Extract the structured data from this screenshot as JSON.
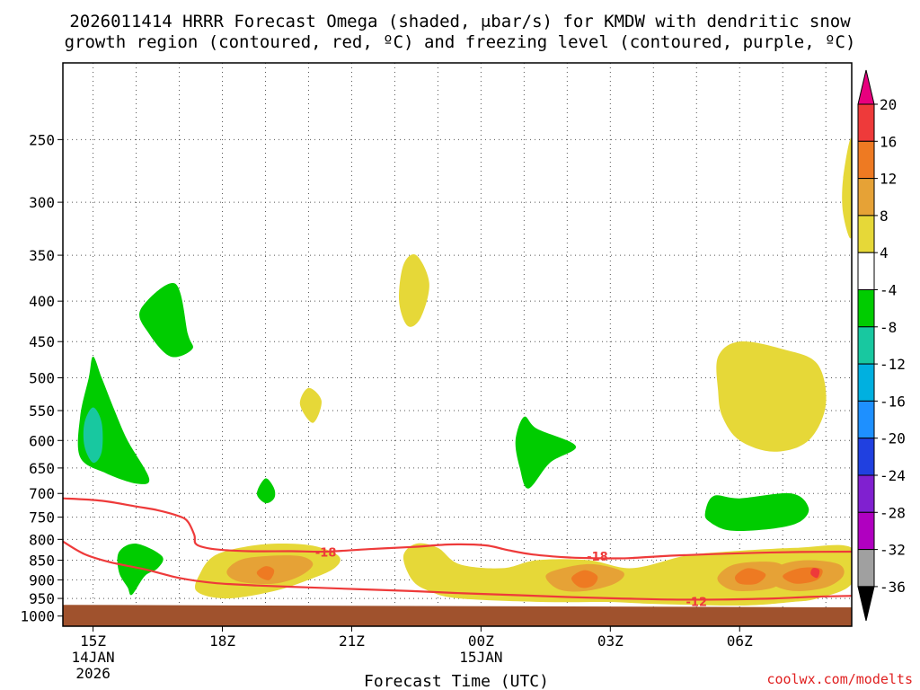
{
  "chart_data": {
    "type": "contour-timeheight",
    "title_line1": "2026011414 HRRR Forecast Omega (shaded, μbar/s) for KMDW with dendritic snow",
    "title_line2": "growth region (contoured, red, ºC) and freezing level (contoured, purple, ºC)",
    "xlabel": "Forecast Time (UTC)",
    "credit": "coolwx.com/modelts",
    "x_range_hours": [
      14.3,
      32.6
    ],
    "y_range_hpa": [
      1030,
      200
    ],
    "y_ticks": [
      250,
      300,
      350,
      400,
      450,
      500,
      550,
      600,
      650,
      700,
      750,
      800,
      850,
      900,
      950,
      1000
    ],
    "x_ticks": [
      {
        "hour": 15,
        "lines": [
          "15Z",
          "14JAN",
          "2026"
        ]
      },
      {
        "hour": 18,
        "lines": [
          "18Z"
        ]
      },
      {
        "hour": 21,
        "lines": [
          "21Z"
        ]
      },
      {
        "hour": 24,
        "lines": [
          "00Z",
          "15JAN"
        ]
      },
      {
        "hour": 27,
        "lines": [
          "03Z"
        ]
      },
      {
        "hour": 30,
        "lines": [
          "06Z"
        ]
      }
    ],
    "colorbar": {
      "levels": [
        "20",
        "16",
        "12",
        "8",
        "4",
        "-4",
        "-8",
        "-12",
        "-16",
        "-20",
        "-24",
        "-28",
        "-32",
        "-36"
      ],
      "colors": [
        "#e8007e",
        "#ee3a3a",
        "#ee7a22",
        "#e6a236",
        "#e6d838",
        "#ffffff",
        "#00cc00",
        "#18c8a0",
        "#00b0e0",
        "#1e90ff",
        "#2040e0",
        "#8020d0",
        "#b000c0",
        "#a0a0a0",
        "#000000"
      ]
    },
    "surface_color": "#a0522d",
    "shaded_regions": [
      {
        "name": "green-upper-left",
        "color": "#00cc00",
        "points": [
          [
            15.0,
            470
          ],
          [
            15.2,
            500
          ],
          [
            15.5,
            550
          ],
          [
            15.8,
            600
          ],
          [
            16.3,
            670
          ],
          [
            16.0,
            680
          ],
          [
            15.3,
            660
          ],
          [
            14.7,
            630
          ],
          [
            14.7,
            560
          ],
          [
            14.9,
            500
          ]
        ]
      },
      {
        "name": "teal-core",
        "color": "#18c8a0",
        "points": [
          [
            15.0,
            545
          ],
          [
            15.2,
            570
          ],
          [
            15.2,
            620
          ],
          [
            15.0,
            640
          ],
          [
            14.8,
            610
          ],
          [
            14.8,
            570
          ]
        ]
      },
      {
        "name": "green-400",
        "color": "#00cc00",
        "points": [
          [
            16.1,
            410
          ],
          [
            16.9,
            380
          ],
          [
            17.2,
            440
          ],
          [
            17.3,
            460
          ],
          [
            16.8,
            470
          ],
          [
            16.3,
            440
          ]
        ]
      },
      {
        "name": "green-700",
        "color": "#00cc00",
        "points": [
          [
            19.0,
            670
          ],
          [
            19.2,
            690
          ],
          [
            19.2,
            710
          ],
          [
            19.0,
            720
          ],
          [
            18.8,
            700
          ]
        ]
      },
      {
        "name": "green-low-left",
        "color": "#00cc00",
        "points": [
          [
            15.6,
            830
          ],
          [
            16.0,
            810
          ],
          [
            16.6,
            840
          ],
          [
            16.5,
            870
          ],
          [
            16.2,
            890
          ],
          [
            15.9,
            940
          ],
          [
            15.8,
            920
          ],
          [
            15.6,
            880
          ]
        ]
      },
      {
        "name": "green-600",
        "color": "#00cc00",
        "points": [
          [
            25.0,
            560
          ],
          [
            25.3,
            580
          ],
          [
            26.2,
            610
          ],
          [
            25.6,
            640
          ],
          [
            25.1,
            690
          ],
          [
            24.9,
            650
          ],
          [
            24.8,
            600
          ]
        ]
      },
      {
        "name": "green-750",
        "color": "#00cc00",
        "points": [
          [
            29.4,
            705
          ],
          [
            30.0,
            710
          ],
          [
            31.2,
            700
          ],
          [
            31.6,
            730
          ],
          [
            31.4,
            760
          ],
          [
            30.8,
            775
          ],
          [
            29.8,
            780
          ],
          [
            29.3,
            760
          ],
          [
            29.2,
            740
          ]
        ]
      },
      {
        "name": "yellow-top-right",
        "color": "#e6d838",
        "points": [
          [
            32.6,
            250
          ],
          [
            32.6,
            330
          ],
          [
            32.4,
            310
          ],
          [
            32.4,
            280
          ]
        ]
      },
      {
        "name": "yellow-380",
        "color": "#e6d838",
        "points": [
          [
            22.2,
            360
          ],
          [
            22.5,
            350
          ],
          [
            22.8,
            380
          ],
          [
            22.6,
            420
          ],
          [
            22.3,
            430
          ],
          [
            22.1,
            400
          ]
        ]
      },
      {
        "name": "yellow-540",
        "color": "#e6d838",
        "points": [
          [
            20.0,
            515
          ],
          [
            20.3,
            535
          ],
          [
            20.1,
            570
          ],
          [
            19.8,
            540
          ]
        ]
      },
      {
        "name": "yellow-500",
        "color": "#e6d838",
        "points": [
          [
            29.5,
            470
          ],
          [
            30.0,
            450
          ],
          [
            31.0,
            460
          ],
          [
            31.8,
            480
          ],
          [
            32.0,
            540
          ],
          [
            31.6,
            600
          ],
          [
            30.8,
            620
          ],
          [
            30.0,
            600
          ],
          [
            29.6,
            560
          ],
          [
            29.5,
            520
          ]
        ]
      },
      {
        "name": "yellow-lowlevel-left",
        "color": "#e6d838",
        "points": [
          [
            17.5,
            880
          ],
          [
            17.8,
            840
          ],
          [
            18.4,
            820
          ],
          [
            19.2,
            810
          ],
          [
            20.1,
            815
          ],
          [
            20.7,
            840
          ],
          [
            20.6,
            870
          ],
          [
            20.0,
            900
          ],
          [
            19.2,
            930
          ],
          [
            18.1,
            950
          ],
          [
            17.4,
            930
          ]
        ]
      },
      {
        "name": "yellow-lowlevel-right",
        "color": "#e6d838",
        "points": [
          [
            22.2,
            840
          ],
          [
            22.5,
            810
          ],
          [
            23.0,
            820
          ],
          [
            23.5,
            860
          ],
          [
            24.5,
            870
          ],
          [
            25.3,
            850
          ],
          [
            26.5,
            850
          ],
          [
            27.5,
            870
          ],
          [
            28.7,
            840
          ],
          [
            29.6,
            830
          ],
          [
            31.3,
            820
          ],
          [
            32.6,
            820
          ],
          [
            32.6,
            910
          ],
          [
            31.8,
            950
          ],
          [
            31.2,
            960
          ],
          [
            30.0,
            970
          ],
          [
            28.0,
            965
          ],
          [
            27.0,
            960
          ],
          [
            25.5,
            960
          ],
          [
            23.5,
            950
          ],
          [
            22.8,
            930
          ],
          [
            22.4,
            900
          ]
        ]
      },
      {
        "name": "orange-19z",
        "color": "#e6a236",
        "points": [
          [
            18.1,
            880
          ],
          [
            18.4,
            850
          ],
          [
            19.0,
            840
          ],
          [
            19.8,
            840
          ],
          [
            20.1,
            860
          ],
          [
            19.8,
            890
          ],
          [
            19.2,
            910
          ],
          [
            18.4,
            905
          ]
        ]
      },
      {
        "name": "orange-02z",
        "color": "#e6a236",
        "points": [
          [
            25.5,
            890
          ],
          [
            25.9,
            870
          ],
          [
            26.6,
            860
          ],
          [
            27.3,
            880
          ],
          [
            27.1,
            910
          ],
          [
            26.4,
            930
          ],
          [
            25.8,
            925
          ]
        ]
      },
      {
        "name": "orange-06z",
        "color": "#e6a236",
        "points": [
          [
            29.5,
            890
          ],
          [
            29.9,
            860
          ],
          [
            30.8,
            855
          ],
          [
            31.1,
            880
          ],
          [
            30.8,
            920
          ],
          [
            30.0,
            930
          ],
          [
            29.6,
            915
          ]
        ]
      },
      {
        "name": "orange-0730z",
        "color": "#e6a236",
        "points": [
          [
            30.6,
            890
          ],
          [
            31.0,
            860
          ],
          [
            31.6,
            850
          ],
          [
            32.3,
            860
          ],
          [
            32.4,
            890
          ],
          [
            32.0,
            920
          ],
          [
            31.3,
            930
          ],
          [
            30.8,
            915
          ]
        ]
      },
      {
        "name": "dkorange-19z",
        "color": "#ee7a22",
        "points": [
          [
            18.8,
            880
          ],
          [
            19.0,
            865
          ],
          [
            19.2,
            875
          ],
          [
            19.1,
            900
          ],
          [
            18.9,
            895
          ]
        ]
      },
      {
        "name": "dkorange-02z",
        "color": "#ee7a22",
        "points": [
          [
            26.1,
            895
          ],
          [
            26.4,
            875
          ],
          [
            26.7,
            890
          ],
          [
            26.6,
            915
          ],
          [
            26.3,
            920
          ]
        ]
      },
      {
        "name": "dkorange-06z",
        "color": "#ee7a22",
        "points": [
          [
            29.9,
            890
          ],
          [
            30.2,
            870
          ],
          [
            30.6,
            885
          ],
          [
            30.4,
            910
          ],
          [
            30.0,
            910
          ]
        ]
      },
      {
        "name": "dkorange-0730z",
        "color": "#ee7a22",
        "points": [
          [
            31.0,
            890
          ],
          [
            31.4,
            870
          ],
          [
            31.9,
            872
          ],
          [
            31.8,
            900
          ],
          [
            31.3,
            910
          ]
        ]
      },
      {
        "name": "red-0730z",
        "color": "#ee3a3a",
        "points": [
          [
            31.7,
            870
          ],
          [
            31.85,
            875
          ],
          [
            31.8,
            895
          ],
          [
            31.65,
            885
          ]
        ]
      }
    ],
    "contours": [
      {
        "label": "-18",
        "label_at": [
          20.4,
          830
        ],
        "color": "#ee3a3a",
        "points": [
          [
            14.3,
            710
          ],
          [
            15.2,
            715
          ],
          [
            16.0,
            727
          ],
          [
            16.5,
            735
          ],
          [
            17.0,
            748
          ],
          [
            17.2,
            760
          ],
          [
            17.35,
            790
          ],
          [
            17.4,
            812
          ],
          [
            17.8,
            823
          ],
          [
            18.6,
            828
          ],
          [
            19.6,
            828
          ],
          [
            20.4,
            829
          ],
          [
            21.4,
            823
          ],
          [
            22.4,
            818
          ],
          [
            23.3,
            812
          ],
          [
            24.1,
            814
          ],
          [
            24.6,
            825
          ],
          [
            25.2,
            836
          ],
          [
            26.0,
            843
          ],
          [
            26.6,
            845
          ],
          [
            27.4,
            845
          ],
          [
            28.4,
            839
          ],
          [
            29.4,
            835
          ],
          [
            30.4,
            832
          ],
          [
            31.4,
            830
          ],
          [
            32.6,
            829
          ]
        ]
      },
      {
        "label": "-18",
        "label_at": [
          26.7,
          840
        ],
        "color": "#ee3a3a",
        "points": []
      },
      {
        "label": "-12",
        "label_at": [
          29.0,
          958
        ],
        "color": "#ee3a3a",
        "points": [
          [
            14.3,
            805
          ],
          [
            14.8,
            835
          ],
          [
            15.4,
            855
          ],
          [
            16.2,
            873
          ],
          [
            17.0,
            895
          ],
          [
            17.8,
            908
          ],
          [
            18.8,
            915
          ],
          [
            20.0,
            920
          ],
          [
            21.2,
            925
          ],
          [
            22.4,
            930
          ],
          [
            23.6,
            936
          ],
          [
            24.8,
            941
          ],
          [
            26.0,
            946
          ],
          [
            27.2,
            950
          ],
          [
            28.4,
            953
          ],
          [
            29.6,
            953
          ],
          [
            30.8,
            950
          ],
          [
            31.8,
            945
          ],
          [
            32.6,
            943
          ]
        ]
      }
    ]
  }
}
